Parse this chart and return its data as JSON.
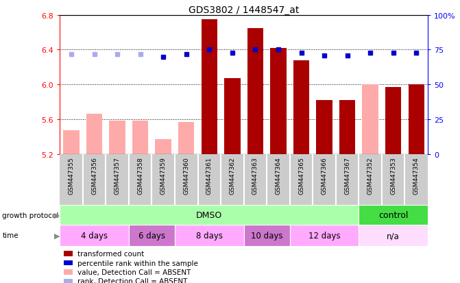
{
  "title": "GDS3802 / 1448547_at",
  "samples": [
    "GSM447355",
    "GSM447356",
    "GSM447357",
    "GSM447358",
    "GSM447359",
    "GSM447360",
    "GSM447361",
    "GSM447362",
    "GSM447363",
    "GSM447364",
    "GSM447365",
    "GSM447366",
    "GSM447367",
    "GSM447352",
    "GSM447353",
    "GSM447354"
  ],
  "bar_values": [
    5.47,
    5.66,
    5.58,
    5.58,
    5.37,
    5.57,
    6.75,
    6.07,
    6.65,
    6.42,
    6.28,
    5.82,
    5.82,
    6.0,
    5.97,
    6.0
  ],
  "bar_absent": [
    true,
    true,
    true,
    true,
    true,
    true,
    false,
    false,
    false,
    false,
    false,
    false,
    false,
    true,
    false,
    false
  ],
  "rank_values": [
    72,
    72,
    72,
    72,
    70,
    72,
    75,
    73,
    75,
    75,
    73,
    71,
    71,
    73,
    73,
    73
  ],
  "rank_absent": [
    true,
    true,
    true,
    true,
    false,
    false,
    false,
    false,
    false,
    false,
    false,
    false,
    false,
    false,
    false,
    false
  ],
  "ylim_left": [
    5.2,
    6.8
  ],
  "ylim_right": [
    0,
    100
  ],
  "yticks_left": [
    5.2,
    5.6,
    6.0,
    6.4,
    6.8
  ],
  "yticks_right": [
    0,
    25,
    50,
    75,
    100
  ],
  "ytick_labels_left": [
    "5.2",
    "5.6",
    "6.0",
    "6.4",
    "6.8"
  ],
  "ytick_labels_right": [
    "0",
    "25",
    "50",
    "75",
    "100%"
  ],
  "color_bar_present": "#aa0000",
  "color_bar_absent": "#ffaaaa",
  "color_rank_present": "#0000cc",
  "color_rank_absent": "#aaaaee",
  "growth_protocol_label": "growth protocol",
  "time_label": "time",
  "dmso_color": "#aaffaa",
  "control_color": "#44dd44",
  "time_data": [
    {
      "label": "4 days",
      "start": 0,
      "end": 2,
      "color": "#ffaaff"
    },
    {
      "label": "6 days",
      "start": 3,
      "end": 4,
      "color": "#cc77cc"
    },
    {
      "label": "8 days",
      "start": 5,
      "end": 7,
      "color": "#ffaaff"
    },
    {
      "label": "10 days",
      "start": 8,
      "end": 9,
      "color": "#cc77cc"
    },
    {
      "label": "12 days",
      "start": 10,
      "end": 12,
      "color": "#ffaaff"
    },
    {
      "label": "n/a",
      "start": 13,
      "end": 15,
      "color": "#ffddff"
    }
  ],
  "legend_labels": [
    "transformed count",
    "percentile rank within the sample",
    "value, Detection Call = ABSENT",
    "rank, Detection Call = ABSENT"
  ],
  "legend_colors": [
    "#aa0000",
    "#0000cc",
    "#ffaaaa",
    "#aaaaee"
  ],
  "bar_width": 0.7,
  "sample_col_border": "#aaaaaa",
  "gray_col_bg": "#cccccc"
}
